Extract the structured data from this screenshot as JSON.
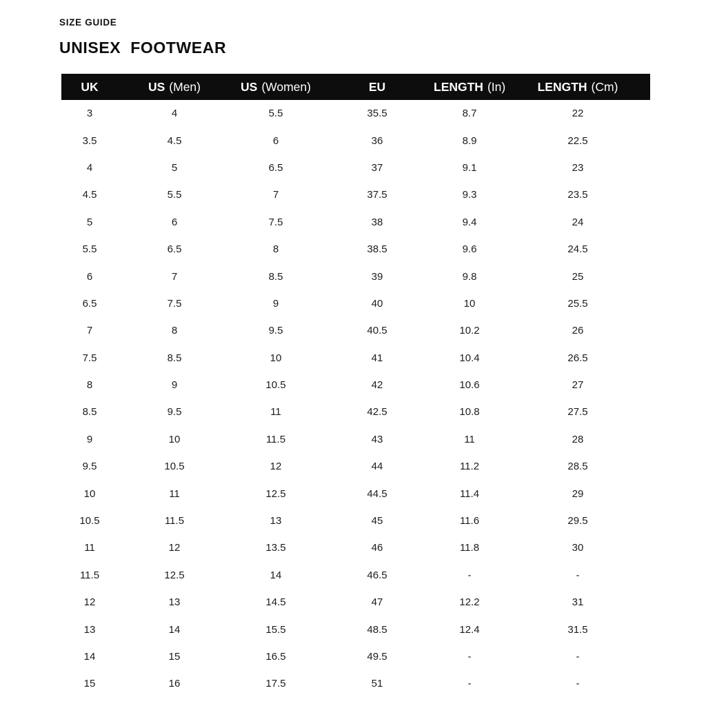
{
  "page": {
    "eyebrow": "SIZE GUIDE",
    "title": "UNISEX FOOTWEAR"
  },
  "colors": {
    "background": "#ffffff",
    "header_bg": "#0d0d0d",
    "header_text": "#ffffff",
    "body_text": "#1c1c1c"
  },
  "table": {
    "headers": [
      {
        "bold": "UK",
        "normal": ""
      },
      {
        "bold": "US",
        "normal": "(Men)"
      },
      {
        "bold": "US",
        "normal": "(Women)"
      },
      {
        "bold": "EU",
        "normal": ""
      },
      {
        "bold": "LENGTH",
        "normal": "(In)"
      },
      {
        "bold": "LENGTH",
        "normal": "(Cm)"
      }
    ]
  },
  "chart_data": {
    "type": "table",
    "title": "UNISEX FOOTWEAR",
    "subtitle": "SIZE GUIDE",
    "columns": [
      "UK",
      "US (Men)",
      "US (Women)",
      "EU",
      "LENGTH (In)",
      "LENGTH (Cm)"
    ],
    "rows": [
      [
        "3",
        "4",
        "5.5",
        "35.5",
        "8.7",
        "22"
      ],
      [
        "3.5",
        "4.5",
        "6",
        "36",
        "8.9",
        "22.5"
      ],
      [
        "4",
        "5",
        "6.5",
        "37",
        "9.1",
        "23"
      ],
      [
        "4.5",
        "5.5",
        "7",
        "37.5",
        "9.3",
        "23.5"
      ],
      [
        "5",
        "6",
        "7.5",
        "38",
        "9.4",
        "24"
      ],
      [
        "5.5",
        "6.5",
        "8",
        "38.5",
        "9.6",
        "24.5"
      ],
      [
        "6",
        "7",
        "8.5",
        "39",
        "9.8",
        "25"
      ],
      [
        "6.5",
        "7.5",
        "9",
        "40",
        "10",
        "25.5"
      ],
      [
        "7",
        "8",
        "9.5",
        "40.5",
        "10.2",
        "26"
      ],
      [
        "7.5",
        "8.5",
        "10",
        "41",
        "10.4",
        "26.5"
      ],
      [
        "8",
        "9",
        "10.5",
        "42",
        "10.6",
        "27"
      ],
      [
        "8.5",
        "9.5",
        "11",
        "42.5",
        "10.8",
        "27.5"
      ],
      [
        "9",
        "10",
        "11.5",
        "43",
        "11",
        "28"
      ],
      [
        "9.5",
        "10.5",
        "12",
        "44",
        "11.2",
        "28.5"
      ],
      [
        "10",
        "11",
        "12.5",
        "44.5",
        "11.4",
        "29"
      ],
      [
        "10.5",
        "11.5",
        "13",
        "45",
        "11.6",
        "29.5"
      ],
      [
        "11",
        "12",
        "13.5",
        "46",
        "11.8",
        "30"
      ],
      [
        "11.5",
        "12.5",
        "14",
        "46.5",
        "-",
        "-"
      ],
      [
        "12",
        "13",
        "14.5",
        "47",
        "12.2",
        "31"
      ],
      [
        "13",
        "14",
        "15.5",
        "48.5",
        "12.4",
        "31.5"
      ],
      [
        "14",
        "15",
        "16.5",
        "49.5",
        "-",
        "-"
      ],
      [
        "15",
        "16",
        "17.5",
        "51",
        "-",
        "-"
      ]
    ]
  }
}
